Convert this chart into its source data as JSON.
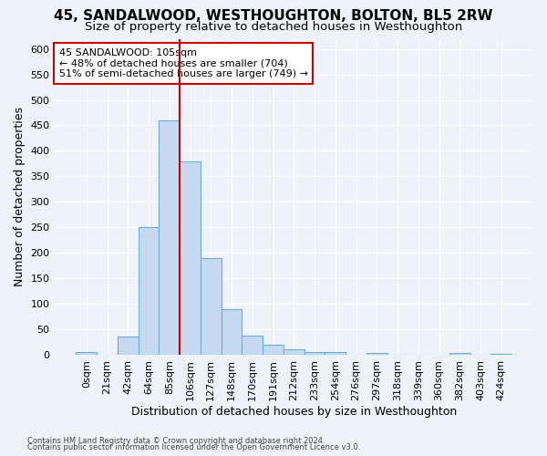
{
  "title": "45, SANDALWOOD, WESTHOUGHTON, BOLTON, BL5 2RW",
  "subtitle": "Size of property relative to detached houses in Westhoughton",
  "xlabel": "Distribution of detached houses by size in Westhoughton",
  "ylabel": "Number of detached properties",
  "footnote1": "Contains HM Land Registry data © Crown copyright and database right 2024.",
  "footnote2": "Contains public sector information licensed under the Open Government Licence v3.0.",
  "bar_labels": [
    "0sqm",
    "21sqm",
    "42sqm",
    "64sqm",
    "85sqm",
    "106sqm",
    "127sqm",
    "148sqm",
    "170sqm",
    "191sqm",
    "212sqm",
    "233sqm",
    "254sqm",
    "276sqm",
    "297sqm",
    "318sqm",
    "339sqm",
    "360sqm",
    "382sqm",
    "403sqm",
    "424sqm"
  ],
  "bar_values": [
    5,
    0,
    35,
    250,
    460,
    380,
    190,
    90,
    37,
    20,
    11,
    5,
    5,
    0,
    4,
    0,
    0,
    0,
    4,
    0,
    2
  ],
  "bar_color": "#c5d9f1",
  "bar_edge_color": "#6baed6",
  "vline_x": 5,
  "vline_color": "#cc0000",
  "annotation_text": "45 SANDALWOOD: 105sqm\n← 48% of detached houses are smaller (704)\n51% of semi-detached houses are larger (749) →",
  "annotation_box_color": "#ffffff",
  "annotation_box_edge": "#cc0000",
  "ylim": [
    0,
    620
  ],
  "yticks": [
    0,
    50,
    100,
    150,
    200,
    250,
    300,
    350,
    400,
    450,
    500,
    550,
    600
  ],
  "bg_color": "#eef2fb",
  "plot_bg_color": "#eef2fb",
  "title_fontsize": 11,
  "subtitle_fontsize": 9.5,
  "tick_fontsize": 8,
  "ylabel_fontsize": 9,
  "xlabel_fontsize": 9,
  "annot_fontsize": 8,
  "footnote_fontsize": 6
}
